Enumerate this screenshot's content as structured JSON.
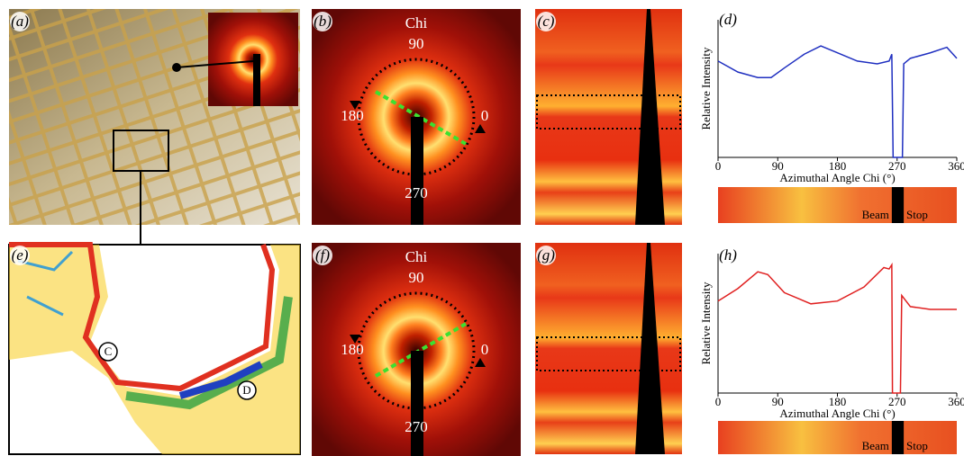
{
  "panel_labels": [
    "(a)",
    "(b)",
    "(c)",
    "(d)",
    "(e)",
    "(f)",
    "(g)",
    "(h)"
  ],
  "panel_b": {
    "axis_title": "Chi",
    "angle_top": "90",
    "angle_left": "180",
    "angle_right": "0",
    "angle_bottom": "270"
  },
  "panel_f": {
    "axis_title": "Chi",
    "angle_top": "90",
    "angle_left": "180",
    "angle_right": "0",
    "angle_bottom": "270"
  },
  "panel_e": {
    "marker_1": "C",
    "marker_2": "D"
  },
  "chart_data": [
    {
      "type": "line",
      "xlabel": "Azimuthal Angle Chi (°)",
      "ylabel": "Relative Intensity",
      "x": [
        0,
        30,
        60,
        80,
        100,
        130,
        155,
        180,
        210,
        240,
        258,
        262,
        264,
        278,
        280,
        290,
        320,
        345,
        360
      ],
      "series": [
        {
          "color": "#1f2fc0",
          "values": [
            0.7,
            0.62,
            0.58,
            0.58,
            0.65,
            0.75,
            0.81,
            0.76,
            0.7,
            0.68,
            0.7,
            0.75,
            0,
            0,
            0.68,
            0.72,
            0.76,
            0.8,
            0.72
          ]
        }
      ],
      "xlim": [
        0,
        360
      ],
      "xticks": [
        0,
        90,
        180,
        270,
        360
      ],
      "ylim": [
        0,
        1
      ],
      "strip_labels": [
        "Beam",
        "Stop"
      ]
    },
    {
      "type": "line",
      "xlabel": "Azimuthal Angle Chi (°)",
      "ylabel": "Relative Intensity",
      "x": [
        0,
        30,
        60,
        75,
        100,
        140,
        180,
        220,
        250,
        258,
        262,
        263,
        275,
        277,
        290,
        320,
        360
      ],
      "series": [
        {
          "color": "#e02020",
          "values": [
            0.66,
            0.75,
            0.87,
            0.85,
            0.72,
            0.64,
            0.66,
            0.76,
            0.9,
            0.89,
            0.92,
            0,
            0,
            0.7,
            0.62,
            0.6,
            0.6
          ]
        }
      ],
      "xlim": [
        0,
        360
      ],
      "xticks": [
        0,
        90,
        180,
        270,
        360
      ],
      "ylim": [
        0,
        1
      ],
      "strip_labels": [
        "Beam",
        "Stop"
      ]
    }
  ]
}
